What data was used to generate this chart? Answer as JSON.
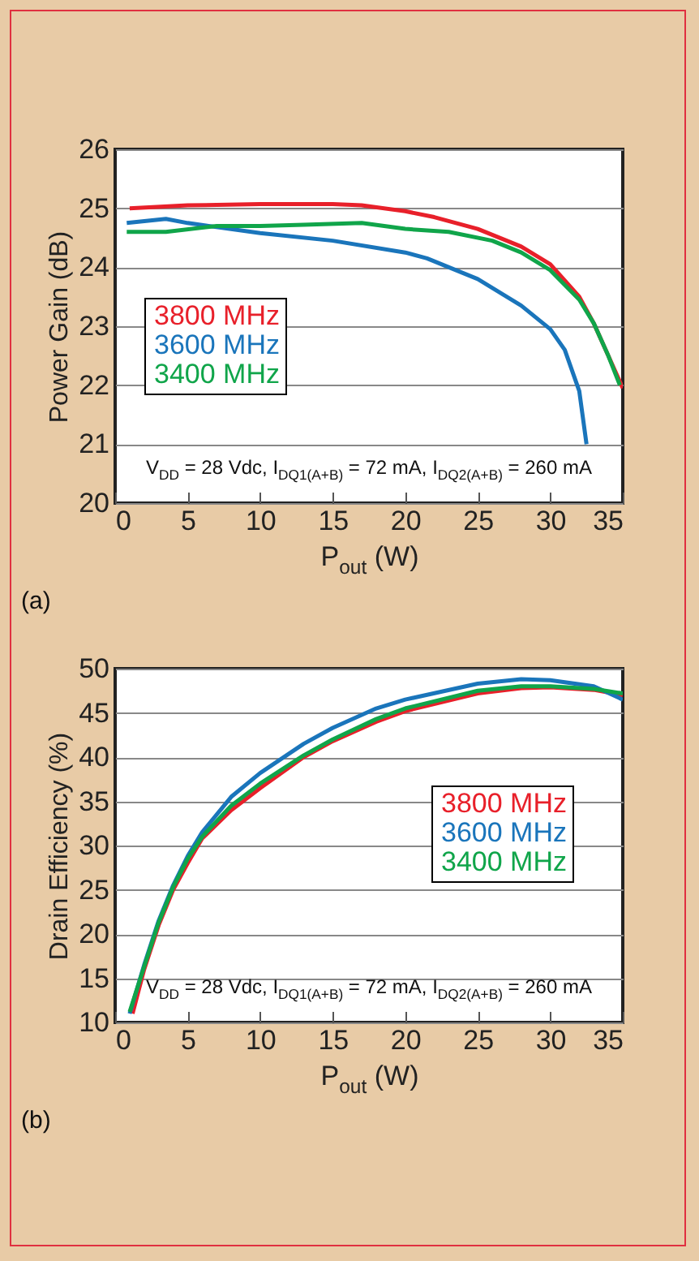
{
  "chart_data": [
    {
      "type": "line",
      "xlabel": "P$_{out}$ (W)",
      "ylabel": "Power Gain (dB)",
      "xlim": [
        0,
        35
      ],
      "ylim": [
        20,
        26
      ],
      "xticks": [
        0,
        5,
        10,
        15,
        20,
        25,
        30,
        35
      ],
      "yticks": [
        20,
        21,
        22,
        23,
        24,
        25,
        26
      ],
      "grid": "y",
      "legend": "left",
      "annotations": [
        "V$_{DD}$ = 28 Vdc, I$_{DQ1(A+B)}$ = 72 mA, I$_{DQ2(A+B)}$ = 260 mA",
        "(a)"
      ],
      "series": [
        {
          "name": "3800 MHz",
          "color": "#e8202a",
          "x": [
            1,
            5,
            10,
            15,
            17,
            20,
            22,
            25,
            28,
            30,
            32,
            33,
            34,
            35
          ],
          "values": [
            25.0,
            25.05,
            25.07,
            25.07,
            25.05,
            24.95,
            24.85,
            24.65,
            24.35,
            24.05,
            23.5,
            23.05,
            22.5,
            21.95
          ]
        },
        {
          "name": "3600 MHz",
          "color": "#1a75bb",
          "x": [
            0.8,
            3.5,
            5,
            10,
            15,
            20,
            21.5,
            25,
            28,
            30,
            31,
            32,
            32.5
          ],
          "values": [
            24.75,
            24.82,
            24.75,
            24.58,
            24.45,
            24.25,
            24.15,
            23.8,
            23.35,
            22.95,
            22.6,
            21.9,
            21.0
          ]
        },
        {
          "name": "3400 MHz",
          "color": "#10a54a",
          "x": [
            0.8,
            3.5,
            7,
            10,
            13,
            17,
            20,
            23,
            26,
            28,
            30,
            32,
            33,
            34,
            34.8
          ],
          "values": [
            24.6,
            24.6,
            24.7,
            24.7,
            24.72,
            24.75,
            24.65,
            24.6,
            24.45,
            24.25,
            23.95,
            23.45,
            23.05,
            22.5,
            22.0
          ]
        }
      ]
    },
    {
      "type": "line",
      "xlabel": "P$_{out}$ (W)",
      "ylabel": "Drain Efficiency (%)",
      "xlim": [
        0,
        35
      ],
      "ylim": [
        10,
        50
      ],
      "xticks": [
        0,
        5,
        10,
        15,
        20,
        25,
        30,
        35
      ],
      "yticks": [
        10,
        15,
        20,
        25,
        30,
        35,
        40,
        45,
        50
      ],
      "grid": "y",
      "legend": "right",
      "annotations": [
        "V$_{DD}$ = 28 Vdc, I$_{DQ1(A+B)}$ = 72 mA, I$_{DQ2(A+B)}$ = 260 mA",
        "(b)"
      ],
      "series": [
        {
          "name": "3800 MHz",
          "color": "#e8202a",
          "x": [
            1.2,
            2,
            3,
            4,
            5,
            6,
            8,
            10,
            13,
            15,
            18,
            20,
            25,
            28,
            30,
            33,
            35
          ],
          "values": [
            11,
            16,
            21,
            25,
            28,
            30.8,
            34,
            36.5,
            40,
            41.8,
            44,
            45.2,
            47.2,
            47.8,
            47.9,
            47.6,
            47
          ]
        },
        {
          "name": "3600 MHz",
          "color": "#1a75bb",
          "x": [
            1,
            2,
            3,
            4,
            5,
            6,
            8,
            10,
            13,
            15,
            18,
            20,
            25,
            28,
            30,
            33,
            35
          ],
          "values": [
            11,
            16.5,
            21.5,
            25.5,
            28.8,
            31.5,
            35.5,
            38.2,
            41.5,
            43.3,
            45.5,
            46.5,
            48.3,
            48.8,
            48.7,
            48,
            46.5
          ]
        },
        {
          "name": "3400 MHz",
          "color": "#10a54a",
          "x": [
            1,
            2,
            3,
            4,
            5,
            6,
            8,
            10,
            13,
            15,
            18,
            20,
            25,
            28,
            30,
            33,
            35
          ],
          "values": [
            11.2,
            16.3,
            21.3,
            25.3,
            28.5,
            31,
            34.5,
            37,
            40.2,
            42,
            44.3,
            45.5,
            47.5,
            48,
            48,
            47.7,
            47.2
          ]
        }
      ]
    }
  ]
}
